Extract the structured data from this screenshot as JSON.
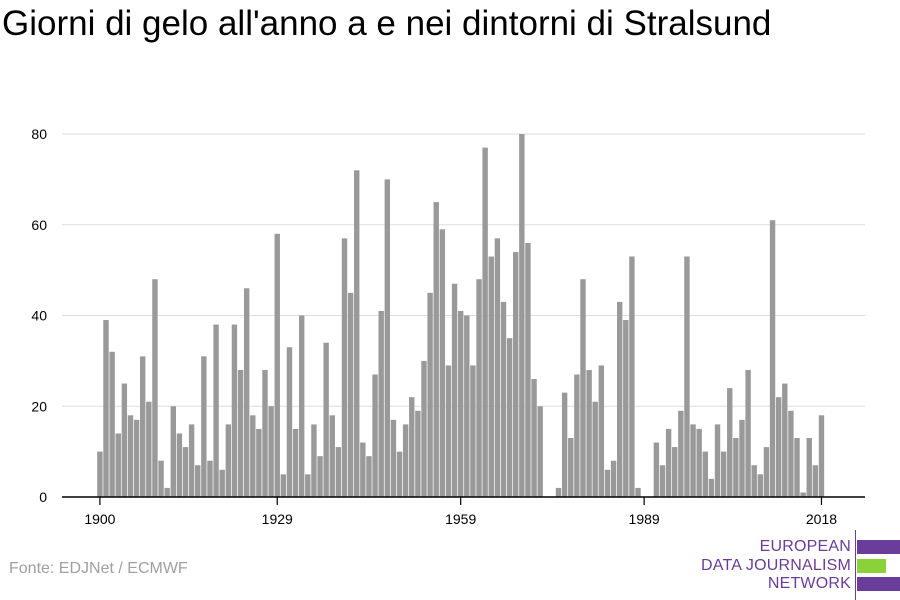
{
  "title": "Giorni di gelo all'anno a e nei dintorni di Stralsund",
  "source": "Fonte: EDJNet / ECMWF",
  "logo": {
    "lines": [
      "EUROPEAN",
      "DATA JOURNALISM",
      "NETWORK"
    ],
    "colors": {
      "purple": "#6a3d9a",
      "green": "#8bd13a"
    }
  },
  "chart_data": {
    "type": "bar",
    "start_year": 1900,
    "values": [
      10,
      39,
      32,
      14,
      25,
      18,
      17,
      31,
      21,
      48,
      8,
      2,
      20,
      14,
      11,
      16,
      7,
      31,
      8,
      38,
      6,
      16,
      38,
      28,
      46,
      18,
      15,
      28,
      20,
      58,
      5,
      33,
      15,
      40,
      5,
      16,
      9,
      34,
      18,
      11,
      57,
      45,
      72,
      12,
      9,
      27,
      41,
      70,
      17,
      10,
      16,
      22,
      19,
      30,
      45,
      65,
      59,
      29,
      47,
      41,
      40,
      29,
      48,
      77,
      53,
      57,
      43,
      35,
      54,
      80,
      56,
      26,
      20,
      0,
      0,
      2,
      23,
      13,
      27,
      48,
      28,
      21,
      29,
      6,
      8,
      43,
      39,
      53,
      2,
      0,
      0,
      12,
      7,
      15,
      11,
      19,
      53,
      16,
      15,
      10,
      4,
      16,
      10,
      24,
      13,
      17,
      28,
      7,
      5,
      11,
      61,
      22,
      25,
      19,
      13,
      1,
      13,
      7,
      18
    ],
    "x_ticks": [
      "1900",
      "1929",
      "1959",
      "1989",
      "2018"
    ],
    "y_ticks": [
      "0",
      "20",
      "40",
      "60",
      "80"
    ],
    "ylim": [
      0,
      80
    ],
    "bar_color": "#999999",
    "grid": true
  }
}
